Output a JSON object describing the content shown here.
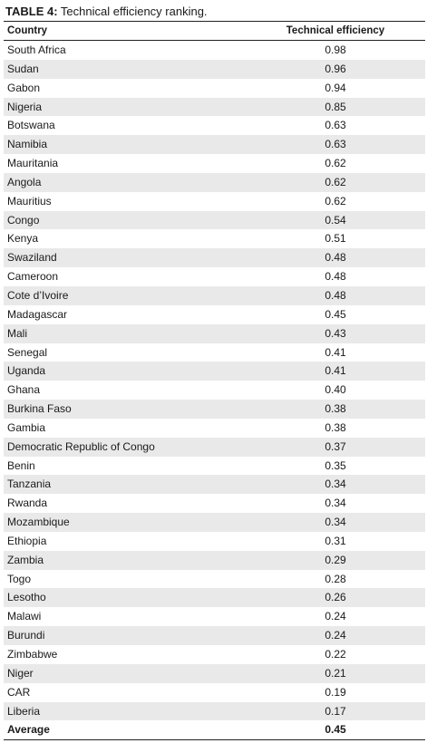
{
  "caption": {
    "label": "TABLE 4:",
    "text": " Technical efficiency ranking."
  },
  "table": {
    "headers": {
      "country": "Country",
      "value": "Technical efficiency"
    },
    "rows": [
      {
        "country": "South Africa",
        "value": "0.98"
      },
      {
        "country": "Sudan",
        "value": "0.96"
      },
      {
        "country": "Gabon",
        "value": "0.94"
      },
      {
        "country": "Nigeria",
        "value": "0.85"
      },
      {
        "country": "Botswana",
        "value": "0.63"
      },
      {
        "country": "Namibia",
        "value": "0.63"
      },
      {
        "country": "Mauritania",
        "value": "0.62"
      },
      {
        "country": "Angola",
        "value": "0.62"
      },
      {
        "country": "Mauritius",
        "value": "0.62"
      },
      {
        "country": "Congo",
        "value": "0.54"
      },
      {
        "country": "Kenya",
        "value": "0.51"
      },
      {
        "country": "Swaziland",
        "value": "0.48"
      },
      {
        "country": "Cameroon",
        "value": "0.48"
      },
      {
        "country": "Cote d’Ivoire",
        "value": "0.48"
      },
      {
        "country": "Madagascar",
        "value": "0.45"
      },
      {
        "country": "Mali",
        "value": "0.43"
      },
      {
        "country": "Senegal",
        "value": "0.41"
      },
      {
        "country": "Uganda",
        "value": "0.41"
      },
      {
        "country": "Ghana",
        "value": "0.40"
      },
      {
        "country": "Burkina Faso",
        "value": "0.38"
      },
      {
        "country": "Gambia",
        "value": "0.38"
      },
      {
        "country": "Democratic Republic of Congo",
        "value": "0.37"
      },
      {
        "country": "Benin",
        "value": "0.35"
      },
      {
        "country": "Tanzania",
        "value": "0.34"
      },
      {
        "country": "Rwanda",
        "value": "0.34"
      },
      {
        "country": "Mozambique",
        "value": "0.34"
      },
      {
        "country": "Ethiopia",
        "value": "0.31"
      },
      {
        "country": "Zambia",
        "value": "0.29"
      },
      {
        "country": "Togo",
        "value": "0.28"
      },
      {
        "country": "Lesotho",
        "value": "0.26"
      },
      {
        "country": "Malawi",
        "value": "0.24"
      },
      {
        "country": "Burundi",
        "value": "0.24"
      },
      {
        "country": "Zimbabwe",
        "value": "0.22"
      },
      {
        "country": "Niger",
        "value": "0.21"
      },
      {
        "country": "CAR",
        "value": "0.19"
      },
      {
        "country": "Liberia",
        "value": "0.17"
      }
    ],
    "average": {
      "country": "Average",
      "value": "0.45"
    }
  },
  "colors": {
    "shade": "#e9e9e9",
    "rule": "#222222"
  }
}
